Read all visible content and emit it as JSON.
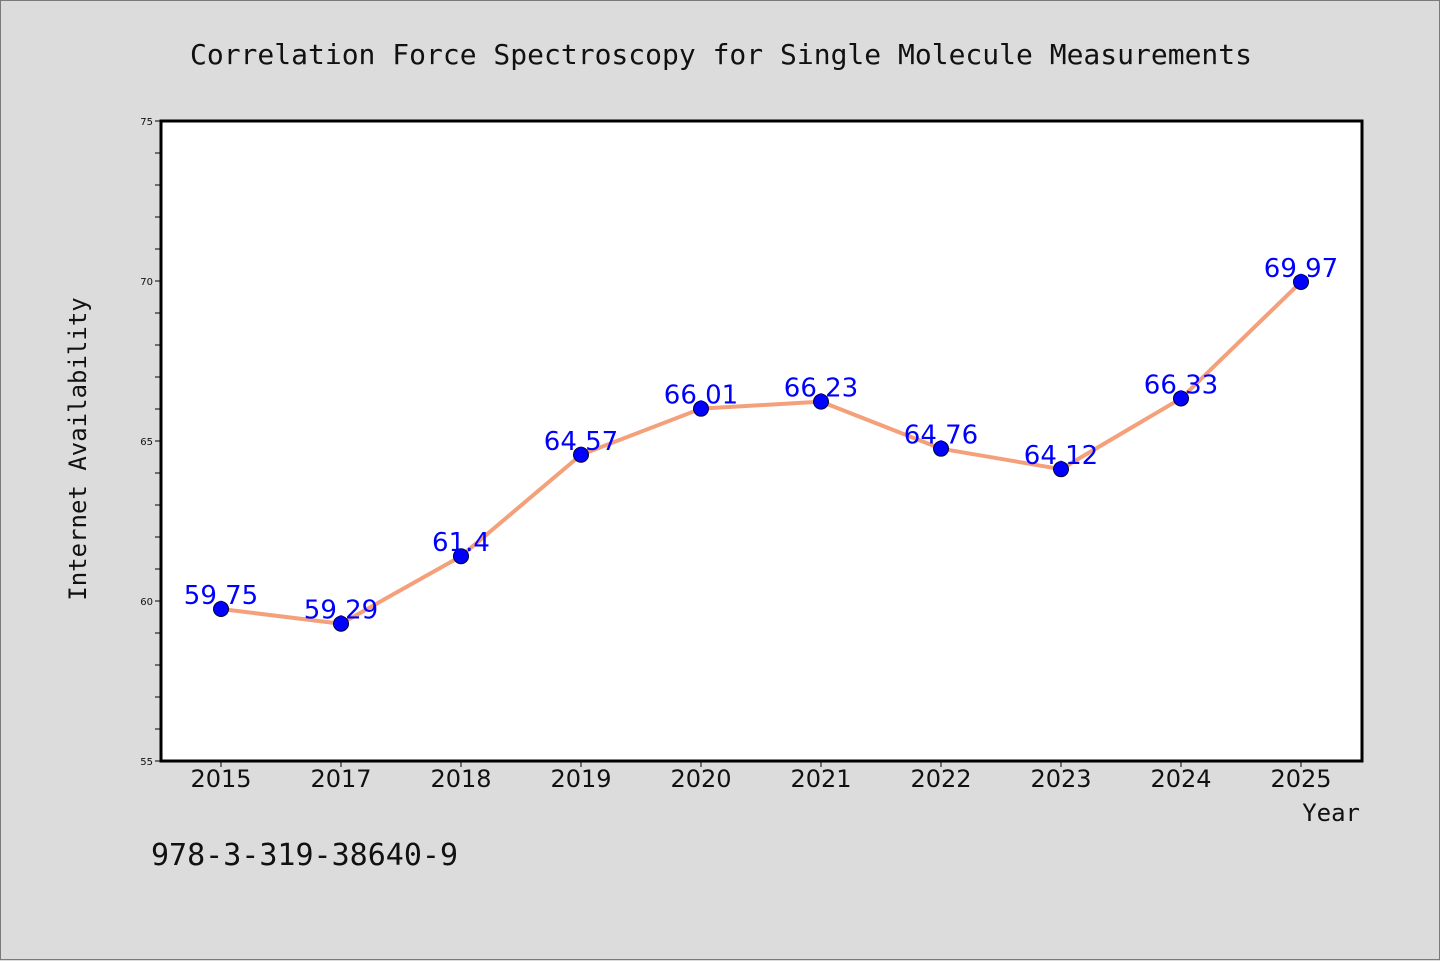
{
  "footer_text": "978-3-319-38640-9",
  "colors": {
    "background": "#dcdcdc",
    "plot_background": "#ffffff",
    "line": "#f4a07a",
    "marker": "#0000ff",
    "data_label": "#0000ff"
  },
  "chart_data": {
    "type": "line",
    "title": "Correlation Force Spectroscopy for Single Molecule Measurements",
    "xlabel": "Year",
    "ylabel": "Internet Availability",
    "categories": [
      "2015",
      "2017",
      "2018",
      "2019",
      "2020",
      "2021",
      "2022",
      "2023",
      "2024",
      "2025"
    ],
    "series": [
      {
        "values": [
          59.75,
          59.29,
          61.4,
          64.57,
          66.01,
          66.23,
          64.76,
          64.12,
          66.33,
          69.97
        ],
        "labels": [
          "59.75",
          "59.29",
          "61.4",
          "64.57",
          "66.01",
          "66.23",
          "64.76",
          "64.12",
          "66.33",
          "69.97"
        ]
      }
    ],
    "ylim": [
      55,
      75
    ],
    "yticks": [
      55,
      60,
      65,
      70,
      75
    ],
    "grid": false,
    "legend": "none"
  }
}
